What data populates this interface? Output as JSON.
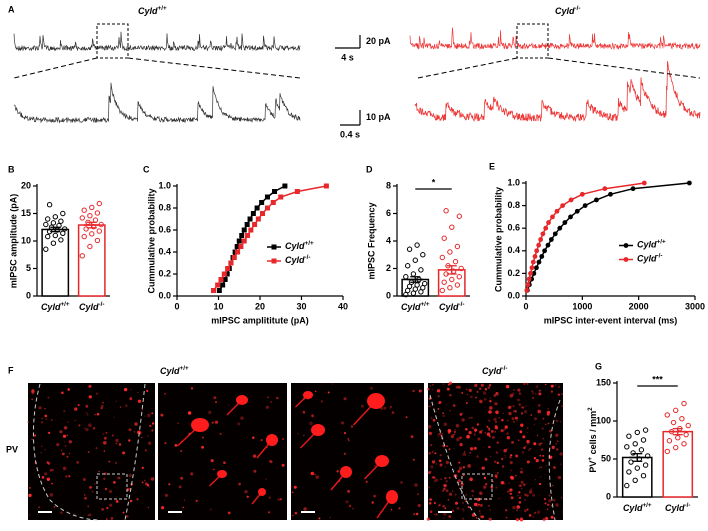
{
  "figure": {
    "panel_a": {
      "label": "A",
      "genotypes": [
        [
          {
            "text": "Cyld",
            "italic": true
          },
          {
            "text": "+/+",
            "sup": true
          }
        ],
        [
          {
            "text": "Cyld",
            "italic": true
          },
          {
            "text": "-/-",
            "sup": true
          }
        ]
      ],
      "scale_bars": [
        {
          "y": "20 pA",
          "x": "4 s"
        },
        {
          "y": "10 pA",
          "x": "0.4 s"
        }
      ]
    },
    "panel_f": {
      "label": "F",
      "genotypes": [
        [
          {
            "text": "Cyld",
            "italic": true
          },
          {
            "text": "+/+",
            "sup": true
          }
        ],
        [
          {
            "text": "Cyld",
            "italic": true
          },
          {
            "text": "-/-",
            "sup": true
          }
        ]
      ],
      "stain": "PV"
    }
  },
  "chart_data": [
    {
      "type": "bar",
      "panel": "B",
      "ylabel": "mIPSC amplitude (pA)",
      "categories": [
        [
          {
            "text": "Cyld",
            "italic": true
          },
          {
            "text": "+/+",
            "sup": true
          }
        ],
        [
          {
            "text": "Cyld",
            "italic": true
          },
          {
            "text": "-/-",
            "sup": true
          }
        ]
      ],
      "values": [
        12.1,
        12.9
      ],
      "errors": [
        0.4,
        0.5
      ],
      "points": [
        [
          8.5,
          9.6,
          10.2,
          10.8,
          11.0,
          11.4,
          11.7,
          12.0,
          12.2,
          12.5,
          12.8,
          13.0,
          13.3,
          13.6,
          14.0,
          14.4,
          15.0,
          16.6
        ],
        [
          7.3,
          9.0,
          10.1,
          10.8,
          11.3,
          11.8,
          12.2,
          12.6,
          13.0,
          13.4,
          13.8,
          14.2,
          14.6,
          15.1,
          15.6,
          16.1,
          16.8
        ]
      ],
      "colors": [
        "#000000",
        "#e8272a"
      ],
      "ylim": [
        0,
        20
      ],
      "yticks": [
        0,
        5,
        10,
        15,
        20
      ]
    },
    {
      "type": "line",
      "panel": "C",
      "xlabel": "mIPSC amplititute (pA)",
      "ylabel": "Cummulative probability",
      "xlim": [
        0,
        40
      ],
      "xticks": [
        0,
        10,
        20,
        30,
        40
      ],
      "ylim": [
        0,
        1
      ],
      "yticks": [
        {
          "value": 0,
          "label": "0.0"
        },
        {
          "value": 0.2,
          "label": "0.2"
        },
        {
          "value": 0.4,
          "label": "0.4"
        },
        {
          "value": 0.6,
          "label": "0.6"
        },
        {
          "value": 0.8,
          "label": "0.8"
        },
        {
          "value": 1,
          "label": "1.0"
        }
      ],
      "legend": "center right",
      "series": [
        {
          "name": [
            {
              "text": "Cyld",
              "italic": true
            },
            {
              "text": "+/+",
              "sup": true
            }
          ],
          "color": "#000000",
          "marker": "square",
          "x": [
            10.2,
            11.0,
            11.6,
            12.1,
            12.6,
            13.0,
            13.5,
            14.0,
            14.5,
            15.0,
            15.6,
            16.2,
            16.9,
            17.6,
            18.4,
            19.3,
            20.4,
            21.8,
            23.5,
            26.0
          ],
          "values": [
            0.05,
            0.1,
            0.15,
            0.2,
            0.25,
            0.3,
            0.35,
            0.4,
            0.45,
            0.5,
            0.55,
            0.6,
            0.65,
            0.7,
            0.75,
            0.8,
            0.85,
            0.9,
            0.95,
            1.0
          ]
        },
        {
          "name": [
            {
              "text": "Cyld",
              "italic": true
            },
            {
              "text": "-/-",
              "sup": true
            }
          ],
          "color": "#e8272a",
          "marker": "square",
          "x": [
            8.8,
            9.8,
            10.6,
            11.4,
            12.2,
            13.0,
            13.8,
            14.6,
            15.4,
            16.2,
            17.0,
            17.8,
            18.7,
            19.6,
            20.6,
            21.8,
            23.2,
            25.0,
            29.0,
            36.0
          ],
          "values": [
            0.05,
            0.1,
            0.15,
            0.2,
            0.25,
            0.3,
            0.35,
            0.4,
            0.45,
            0.5,
            0.55,
            0.6,
            0.65,
            0.7,
            0.75,
            0.8,
            0.85,
            0.9,
            0.95,
            1.0
          ]
        }
      ]
    },
    {
      "type": "bar",
      "panel": "D",
      "ylabel": "mIPSC Frequency",
      "categories": [
        [
          {
            "text": "Cyld",
            "italic": true
          },
          {
            "text": "+/+",
            "sup": true
          }
        ],
        [
          {
            "text": "Cyld",
            "italic": true
          },
          {
            "text": "-/-",
            "sup": true
          }
        ]
      ],
      "values": [
        1.2,
        1.9
      ],
      "errors": [
        0.2,
        0.3
      ],
      "points": [
        [
          0.1,
          0.2,
          0.3,
          0.4,
          0.5,
          0.6,
          0.7,
          0.8,
          0.9,
          1.0,
          1.2,
          1.4,
          1.6,
          1.9,
          2.2,
          2.6,
          3.0,
          3.4,
          3.7
        ],
        [
          0.4,
          0.6,
          0.8,
          1.0,
          1.2,
          1.4,
          1.6,
          1.8,
          2.0,
          2.2,
          2.5,
          2.8,
          3.2,
          3.6,
          4.2,
          5.0,
          5.8,
          6.2
        ]
      ],
      "colors": [
        "#000000",
        "#e8272a"
      ],
      "significance": "*",
      "ylim": [
        0,
        8
      ],
      "yticks": [
        0,
        2,
        4,
        6,
        8
      ]
    },
    {
      "type": "line",
      "panel": "E",
      "xlabel": "mIPSC inter-event interval (ms)",
      "ylabel": "Cummulative probability",
      "xlim": [
        0,
        3000
      ],
      "xticks": [
        0,
        1000,
        2000,
        3000
      ],
      "ylim": [
        0,
        1
      ],
      "yticks": [
        {
          "value": 0,
          "label": "0.0"
        },
        {
          "value": 0.2,
          "label": "0.2"
        },
        {
          "value": 0.4,
          "label": "0.4"
        },
        {
          "value": 0.6,
          "label": "0.6"
        },
        {
          "value": 0.8,
          "label": "0.8"
        },
        {
          "value": 1,
          "label": "1.0"
        }
      ],
      "legend": "center right",
      "series": [
        {
          "name": [
            {
              "text": "Cyld",
              "italic": true
            },
            {
              "text": "+/+",
              "sup": true
            }
          ],
          "color": "#000000",
          "marker": "circle",
          "x": [
            25,
            60,
            100,
            140,
            185,
            230,
            280,
            330,
            390,
            450,
            520,
            600,
            690,
            790,
            910,
            1050,
            1250,
            1500,
            1900,
            2900
          ],
          "values": [
            0.05,
            0.1,
            0.15,
            0.2,
            0.25,
            0.3,
            0.35,
            0.4,
            0.45,
            0.5,
            0.55,
            0.6,
            0.65,
            0.7,
            0.75,
            0.8,
            0.85,
            0.9,
            0.95,
            1.0
          ]
        },
        {
          "name": [
            {
              "text": "Cyld",
              "italic": true
            },
            {
              "text": "-/-",
              "sup": true
            }
          ],
          "color": "#e8272a",
          "marker": "circle",
          "x": [
            15,
            35,
            55,
            80,
            105,
            130,
            160,
            190,
            225,
            260,
            300,
            350,
            400,
            470,
            550,
            650,
            800,
            1000,
            1400,
            2100
          ],
          "values": [
            0.05,
            0.1,
            0.15,
            0.2,
            0.25,
            0.3,
            0.35,
            0.4,
            0.45,
            0.5,
            0.55,
            0.6,
            0.65,
            0.7,
            0.75,
            0.8,
            0.85,
            0.9,
            0.95,
            1.0
          ]
        }
      ]
    },
    {
      "type": "bar",
      "panel": "G",
      "ylabel": [
        {
          "text": "PV"
        },
        {
          "text": "+",
          "sup": true
        },
        {
          "text": " cells / mm"
        },
        {
          "text": "2",
          "sup": true
        }
      ],
      "categories": [
        [
          {
            "text": "Cyld",
            "italic": true
          },
          {
            "text": "+/+",
            "sup": true
          }
        ],
        [
          {
            "text": "Cyld",
            "italic": true
          },
          {
            "text": "-/-",
            "sup": true
          }
        ]
      ],
      "values": [
        52,
        86
      ],
      "errors": [
        5,
        4
      ],
      "points": [
        [
          15,
          22,
          28,
          33,
          38,
          42,
          46,
          50,
          54,
          58,
          62,
          66,
          70,
          75,
          80,
          85,
          88
        ],
        [
          60,
          65,
          70,
          74,
          78,
          82,
          86,
          90,
          94,
          98,
          103,
          108,
          114,
          123
        ]
      ],
      "colors": [
        "#000000",
        "#e8272a"
      ],
      "significance": "***",
      "ylim": [
        0,
        150
      ],
      "yticks": [
        0,
        50,
        100,
        150
      ]
    }
  ]
}
